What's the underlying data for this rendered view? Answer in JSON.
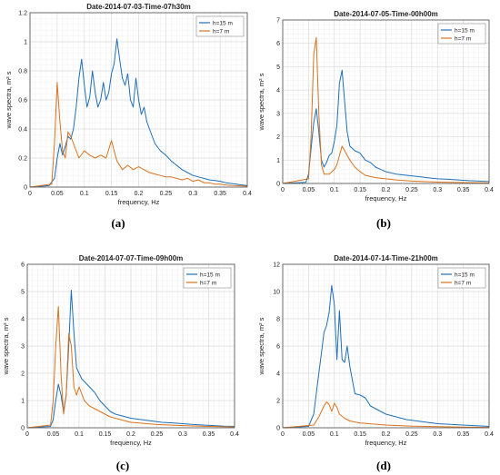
{
  "colors": {
    "series1": "#1f6fb8",
    "series2": "#d9731f",
    "grid": "#dcdcdc",
    "axis": "#4d4d4d"
  },
  "panel_captions": [
    "(a)",
    "(b)",
    "(c)",
    "(d)"
  ],
  "chart_data": [
    {
      "type": "line",
      "title": "Date-2014-07-03-Time-07h30m",
      "xlabel": "frequency, Hz",
      "ylabel": "wave spectra, m² s",
      "xlim": [
        0,
        0.4
      ],
      "ylim": [
        0,
        1.2
      ],
      "xticks": [
        0,
        0.05,
        0.1,
        0.15,
        0.2,
        0.25,
        0.3,
        0.35,
        0.4
      ],
      "xtick_labels": [
        "0",
        "0.05",
        "0.1",
        "0.15",
        "0.2",
        "0.25",
        "0.3",
        "0.35",
        "0.4"
      ],
      "yticks": [
        0,
        0.2,
        0.4,
        0.6,
        0.8,
        1,
        1.2
      ],
      "ytick_labels": [
        "0",
        "0.2",
        "0.4",
        "0.6",
        "0.8",
        "1",
        "1.2"
      ],
      "grid": true,
      "legend": "top-right",
      "series": [
        {
          "name": "h=15 m",
          "x": [
            0,
            0.035,
            0.045,
            0.05,
            0.055,
            0.06,
            0.065,
            0.07,
            0.075,
            0.08,
            0.085,
            0.09,
            0.095,
            0.1,
            0.105,
            0.11,
            0.115,
            0.12,
            0.125,
            0.13,
            0.135,
            0.14,
            0.145,
            0.15,
            0.155,
            0.16,
            0.165,
            0.17,
            0.175,
            0.18,
            0.185,
            0.19,
            0.195,
            0.2,
            0.205,
            0.21,
            0.215,
            0.22,
            0.225,
            0.23,
            0.24,
            0.25,
            0.26,
            0.27,
            0.28,
            0.29,
            0.3,
            0.31,
            0.32,
            0.33,
            0.34,
            0.35,
            0.36,
            0.37,
            0.38,
            0.39,
            0.4
          ],
          "y": [
            0,
            0.01,
            0.06,
            0.2,
            0.3,
            0.22,
            0.28,
            0.35,
            0.33,
            0.4,
            0.55,
            0.75,
            0.88,
            0.7,
            0.55,
            0.62,
            0.8,
            0.65,
            0.55,
            0.6,
            0.72,
            0.6,
            0.65,
            0.78,
            0.85,
            1.02,
            0.88,
            0.75,
            0.7,
            0.78,
            0.6,
            0.55,
            0.75,
            0.6,
            0.5,
            0.55,
            0.45,
            0.4,
            0.35,
            0.3,
            0.25,
            0.22,
            0.18,
            0.15,
            0.12,
            0.1,
            0.08,
            0.07,
            0.06,
            0.05,
            0.045,
            0.04,
            0.03,
            0.025,
            0.02,
            0.015,
            0.01
          ]
        },
        {
          "name": "h=7 m",
          "x": [
            0,
            0.04,
            0.045,
            0.05,
            0.055,
            0.06,
            0.065,
            0.07,
            0.075,
            0.08,
            0.09,
            0.1,
            0.11,
            0.12,
            0.13,
            0.14,
            0.15,
            0.16,
            0.17,
            0.18,
            0.19,
            0.2,
            0.21,
            0.22,
            0.23,
            0.24,
            0.25,
            0.26,
            0.27,
            0.28,
            0.29,
            0.3,
            0.31,
            0.32,
            0.33,
            0.34,
            0.35,
            0.36,
            0.37,
            0.38,
            0.39,
            0.4
          ],
          "y": [
            0,
            0.02,
            0.3,
            0.72,
            0.45,
            0.25,
            0.2,
            0.38,
            0.35,
            0.3,
            0.2,
            0.25,
            0.22,
            0.2,
            0.22,
            0.2,
            0.32,
            0.18,
            0.12,
            0.15,
            0.12,
            0.14,
            0.12,
            0.1,
            0.09,
            0.08,
            0.07,
            0.07,
            0.06,
            0.05,
            0.06,
            0.04,
            0.05,
            0.03,
            0.03,
            0.02,
            0.02,
            0.015,
            0.012,
            0.01,
            0.008,
            0.006
          ]
        }
      ]
    },
    {
      "type": "line",
      "title": "Date-2014-07-05-Time-00h00m",
      "xlabel": "frequency, Hz",
      "ylabel": "wave spectra, m² s",
      "xlim": [
        0,
        0.4
      ],
      "ylim": [
        0,
        7
      ],
      "xticks": [
        0,
        0.05,
        0.1,
        0.15,
        0.2,
        0.25,
        0.3,
        0.35,
        0.4
      ],
      "xtick_labels": [
        "0",
        "0.05",
        "0.1",
        "0.15",
        "0.2",
        "0.25",
        "0.3",
        "0.35",
        "0.4"
      ],
      "yticks": [
        0,
        1,
        2,
        3,
        4,
        5,
        6,
        7
      ],
      "ytick_labels": [
        "0",
        "1",
        "2",
        "3",
        "4",
        "5",
        "6",
        "7"
      ],
      "grid": true,
      "legend": "top-right",
      "series": [
        {
          "name": "h=15 m",
          "x": [
            0,
            0.045,
            0.05,
            0.055,
            0.06,
            0.065,
            0.07,
            0.075,
            0.08,
            0.085,
            0.09,
            0.095,
            0.1,
            0.105,
            0.11,
            0.115,
            0.12,
            0.125,
            0.13,
            0.14,
            0.15,
            0.16,
            0.17,
            0.18,
            0.19,
            0.2,
            0.22,
            0.24,
            0.26,
            0.28,
            0.3,
            0.32,
            0.34,
            0.36,
            0.38,
            0.4
          ],
          "y": [
            0,
            0.05,
            0.4,
            1.5,
            2.6,
            3.2,
            2.2,
            1.0,
            0.7,
            0.9,
            1.2,
            1.3,
            1.8,
            2.5,
            4.3,
            4.85,
            3.5,
            2.2,
            1.6,
            1.4,
            1.3,
            1.0,
            0.9,
            0.7,
            0.6,
            0.5,
            0.4,
            0.35,
            0.3,
            0.25,
            0.2,
            0.18,
            0.15,
            0.12,
            0.1,
            0.08
          ]
        },
        {
          "name": "h=7 m",
          "x": [
            0,
            0.05,
            0.055,
            0.06,
            0.065,
            0.07,
            0.075,
            0.08,
            0.09,
            0.1,
            0.105,
            0.11,
            0.115,
            0.12,
            0.13,
            0.14,
            0.15,
            0.16,
            0.18,
            0.2,
            0.22,
            0.25,
            0.3,
            0.35,
            0.4
          ],
          "y": [
            0,
            0.2,
            2.0,
            5.5,
            6.25,
            3.0,
            0.8,
            0.4,
            0.4,
            0.6,
            0.8,
            1.2,
            1.6,
            1.4,
            1.0,
            0.7,
            0.5,
            0.35,
            0.25,
            0.2,
            0.15,
            0.1,
            0.06,
            0.04,
            0.02
          ]
        }
      ]
    },
    {
      "type": "line",
      "title": "Date-2014-07-07-Time-09h00m",
      "xlabel": "frequency, Hz",
      "ylabel": "wave spectra, m² s",
      "xlim": [
        0,
        0.4
      ],
      "ylim": [
        0,
        6
      ],
      "xticks": [
        0,
        0.05,
        0.1,
        0.15,
        0.2,
        0.25,
        0.3,
        0.35,
        0.4
      ],
      "xtick_labels": [
        "0",
        "0.05",
        "0.1",
        "0.15",
        "0.2",
        "0.25",
        "0.3",
        "0.35",
        "0.4"
      ],
      "yticks": [
        0,
        1,
        2,
        3,
        4,
        5,
        6
      ],
      "ytick_labels": [
        "0",
        "1",
        "2",
        "3",
        "4",
        "5",
        "6"
      ],
      "grid": true,
      "legend": "top-right",
      "series": [
        {
          "name": "h=15 m",
          "x": [
            0,
            0.045,
            0.05,
            0.055,
            0.06,
            0.065,
            0.07,
            0.075,
            0.08,
            0.085,
            0.09,
            0.095,
            0.1,
            0.105,
            0.11,
            0.12,
            0.13,
            0.14,
            0.15,
            0.16,
            0.17,
            0.18,
            0.2,
            0.22,
            0.24,
            0.26,
            0.28,
            0.3,
            0.32,
            0.34,
            0.36,
            0.38,
            0.4
          ],
          "y": [
            0,
            0.05,
            0.3,
            1.0,
            1.6,
            1.2,
            0.6,
            1.2,
            3.0,
            5.05,
            3.5,
            2.2,
            2.0,
            1.8,
            1.7,
            1.5,
            1.3,
            1.0,
            0.8,
            0.6,
            0.5,
            0.45,
            0.35,
            0.3,
            0.25,
            0.2,
            0.18,
            0.15,
            0.12,
            0.1,
            0.08,
            0.06,
            0.05
          ]
        },
        {
          "name": "h=7 m",
          "x": [
            0,
            0.045,
            0.05,
            0.055,
            0.06,
            0.065,
            0.07,
            0.075,
            0.08,
            0.085,
            0.09,
            0.095,
            0.1,
            0.11,
            0.12,
            0.13,
            0.14,
            0.15,
            0.16,
            0.18,
            0.2,
            0.25,
            0.3,
            0.35,
            0.4
          ],
          "y": [
            0,
            0.1,
            1.0,
            3.0,
            4.45,
            2.0,
            0.5,
            1.2,
            3.45,
            3.0,
            1.5,
            1.2,
            1.5,
            1.0,
            0.8,
            0.7,
            0.6,
            0.5,
            0.4,
            0.3,
            0.2,
            0.12,
            0.08,
            0.05,
            0.03
          ]
        }
      ]
    },
    {
      "type": "line",
      "title": "Date-2014-07-14-Time-21h00m",
      "xlabel": "frequency, Hz",
      "ylabel": "wave spectra, m² s",
      "xlim": [
        0,
        0.4
      ],
      "ylim": [
        0,
        12
      ],
      "xticks": [
        0,
        0.05,
        0.1,
        0.15,
        0.2,
        0.25,
        0.3,
        0.35,
        0.4
      ],
      "xtick_labels": [
        "0",
        "0.05",
        "0.1",
        "0.15",
        "0.2",
        "0.25",
        "0.3",
        "0.35",
        "0.4"
      ],
      "yticks": [
        0,
        2,
        4,
        6,
        8,
        10,
        12
      ],
      "ytick_labels": [
        "0",
        "2",
        "4",
        "6",
        "8",
        "10",
        "12"
      ],
      "grid": true,
      "legend": "top-right",
      "series": [
        {
          "name": "h=15 m",
          "x": [
            0,
            0.05,
            0.06,
            0.065,
            0.07,
            0.075,
            0.08,
            0.085,
            0.09,
            0.095,
            0.1,
            0.105,
            0.11,
            0.115,
            0.12,
            0.125,
            0.13,
            0.135,
            0.14,
            0.15,
            0.16,
            0.17,
            0.18,
            0.19,
            0.2,
            0.22,
            0.24,
            0.26,
            0.28,
            0.3,
            0.35,
            0.4
          ],
          "y": [
            0,
            0.1,
            1.0,
            2.5,
            4.0,
            5.5,
            7.0,
            7.5,
            8.5,
            10.45,
            9.0,
            5.0,
            8.6,
            5.0,
            4.8,
            6.0,
            4.5,
            3.5,
            2.5,
            2.4,
            2.2,
            1.6,
            1.4,
            1.2,
            1.0,
            0.8,
            0.6,
            0.5,
            0.4,
            0.3,
            0.2,
            0.1
          ]
        },
        {
          "name": "h=7 m",
          "x": [
            0,
            0.06,
            0.07,
            0.08,
            0.085,
            0.09,
            0.095,
            0.1,
            0.105,
            0.11,
            0.12,
            0.13,
            0.15,
            0.2,
            0.25,
            0.3,
            0.35,
            0.4
          ],
          "y": [
            0,
            0.2,
            0.8,
            1.6,
            1.9,
            1.7,
            1.2,
            1.8,
            1.5,
            1.0,
            0.7,
            0.5,
            0.35,
            0.2,
            0.12,
            0.08,
            0.05,
            0.03
          ]
        }
      ]
    }
  ]
}
